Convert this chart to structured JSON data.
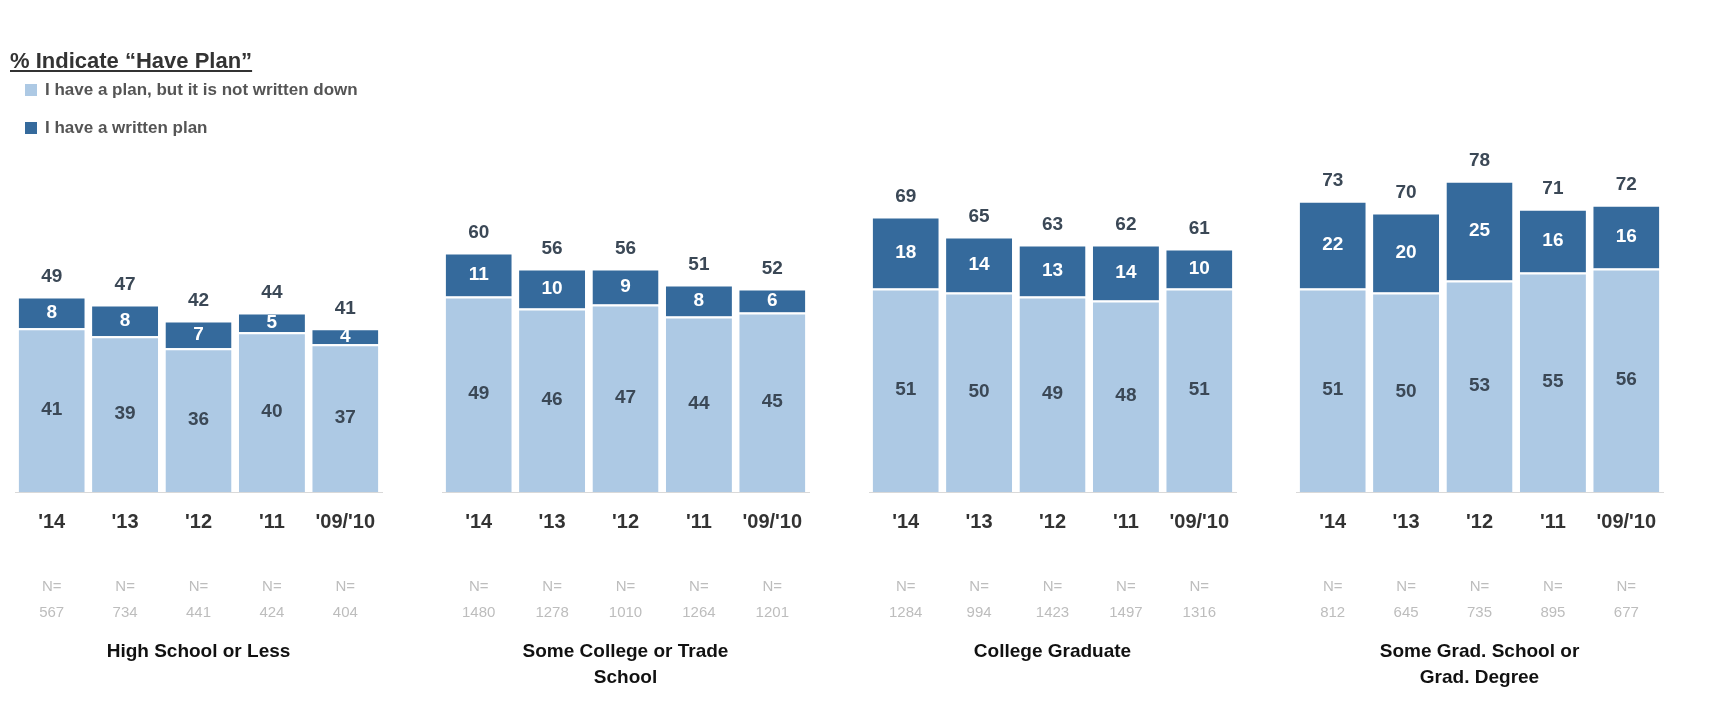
{
  "chart_data": [
    {
      "type": "bar",
      "stacked": true,
      "title": "% Indicate “Have Plan”",
      "xlabel": "High School or Less",
      "categories": [
        "'14",
        "'13",
        "'12",
        "'11",
        "'09/'10"
      ],
      "legend": "top left",
      "grid": false,
      "tick_labels": "x",
      "data_labels": true,
      "totals": [
        "49",
        "47",
        "42",
        "44",
        "41"
      ],
      "series": [
        {
          "name": "I have a plan, but it is not written down",
          "color": "#adc9e4",
          "values": [
            41,
            39,
            36,
            40,
            37
          ]
        },
        {
          "name": "I have a written plan",
          "color": "#356a9c",
          "values": [
            8,
            8,
            7,
            5,
            4
          ]
        }
      ],
      "annotations": [
        "N=\n567",
        "N=\n734",
        "N=\n441",
        "N=\n424",
        "N=\n404"
      ]
    },
    {
      "type": "bar",
      "stacked": true,
      "xlabel": "Some College or Trade School",
      "categories": [
        "'14",
        "'13",
        "'12",
        "'11",
        "'09/'10"
      ],
      "grid": false,
      "tick_labels": "x",
      "data_labels": true,
      "totals": [
        "60",
        "56",
        "56",
        "51",
        "52"
      ],
      "series": [
        {
          "color": "#adc9e4",
          "values": [
            49,
            46,
            47,
            44,
            45
          ]
        },
        {
          "color": "#356a9c",
          "values": [
            11,
            10,
            9,
            8,
            6
          ]
        }
      ],
      "annotations": [
        "N=\n1480",
        "N=\n1278",
        "N=\n1010",
        "N=\n1264",
        "N=\n1201"
      ]
    },
    {
      "type": "bar",
      "stacked": true,
      "xlabel": "College Graduate",
      "categories": [
        "'14",
        "'13",
        "'12",
        "'11",
        "'09/'10"
      ],
      "grid": false,
      "tick_labels": "x",
      "data_labels": true,
      "totals": [
        "69",
        "65",
        "63",
        "62",
        "61"
      ],
      "series": [
        {
          "color": "#adc9e4",
          "values": [
            51,
            50,
            49,
            48,
            51
          ]
        },
        {
          "color": "#356a9c",
          "values": [
            18,
            14,
            13,
            14,
            10
          ]
        }
      ],
      "annotations": [
        "N=\n1284",
        "N=\n994",
        "N=\n1423",
        "N=\n1497",
        "N=\n1316"
      ]
    },
    {
      "type": "bar",
      "stacked": true,
      "xlabel": "Some Grad. School or Grad. Degree",
      "categories": [
        "'14",
        "'13",
        "'12",
        "'11",
        "'09/'10"
      ],
      "grid": false,
      "tick_labels": "x",
      "data_labels": true,
      "totals": [
        "73",
        "70",
        "78",
        "71",
        "72"
      ],
      "series": [
        {
          "color": "#adc9e4",
          "values": [
            51,
            50,
            53,
            55,
            56
          ]
        },
        {
          "color": "#356a9c",
          "values": [
            22,
            20,
            25,
            16,
            16
          ]
        }
      ],
      "annotations": [
        "N=\n812",
        "N=\n645",
        "N=\n735",
        "N=\n895",
        "N=\n677"
      ]
    }
  ]
}
